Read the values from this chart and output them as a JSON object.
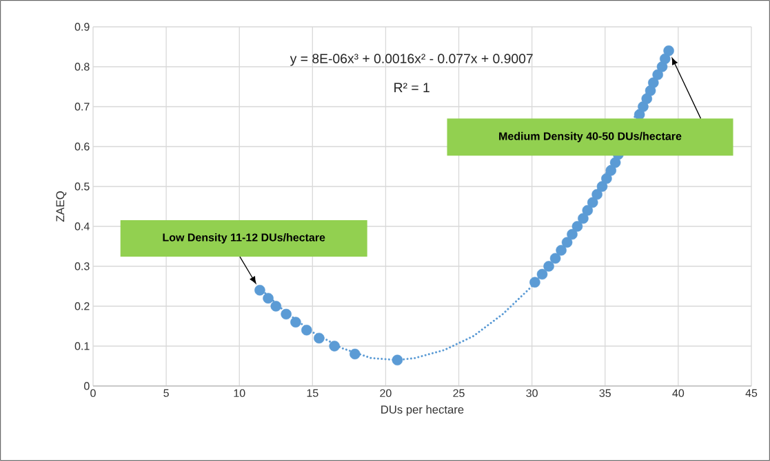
{
  "chart_data": {
    "type": "scatter",
    "xlabel": "DUs per hectare",
    "ylabel": "ZAEQ",
    "xlim": [
      0,
      45
    ],
    "ylim": [
      0,
      0.9
    ],
    "xticks": [
      0,
      5,
      10,
      15,
      20,
      25,
      30,
      35,
      40,
      45
    ],
    "yticks": [
      0,
      0.1,
      0.2,
      0.3,
      0.4,
      0.5,
      0.6,
      0.7,
      0.8,
      0.9
    ],
    "grid": true,
    "series": [
      {
        "color": "#5b9bd5",
        "marker": "circle",
        "x": [
          11.4,
          11.97,
          12.5,
          13.2,
          13.85,
          14.6,
          15.45,
          16.5,
          17.9,
          20.8,
          30.2,
          30.7,
          31.15,
          31.6,
          32.0,
          32.4,
          32.75,
          33.1,
          33.5,
          33.8,
          34.15,
          34.45,
          34.8,
          35.1,
          35.4,
          35.7,
          35.9,
          37.35,
          37.6,
          37.85,
          38.1,
          38.3,
          38.6,
          38.9,
          39.1,
          39.35
        ],
        "values": [
          0.24,
          0.22,
          0.2,
          0.18,
          0.16,
          0.14,
          0.12,
          0.1,
          0.08,
          0.065,
          0.26,
          0.28,
          0.3,
          0.32,
          0.34,
          0.36,
          0.38,
          0.4,
          0.42,
          0.44,
          0.46,
          0.48,
          0.5,
          0.52,
          0.54,
          0.56,
          0.58,
          0.68,
          0.7,
          0.72,
          0.74,
          0.76,
          0.78,
          0.8,
          0.82,
          0.84
        ]
      },
      {
        "type": "line",
        "color": "#5b9bd5",
        "line_style": "dotted",
        "marker": "none",
        "x": [
          11.4,
          13,
          15,
          17,
          19,
          20.8,
          22,
          24,
          26,
          28,
          30,
          32,
          34,
          38,
          39.35
        ],
        "values": [
          0.245,
          0.19,
          0.135,
          0.095,
          0.07,
          0.065,
          0.07,
          0.09,
          0.125,
          0.18,
          0.25,
          0.34,
          0.455,
          0.745,
          0.84
        ]
      }
    ],
    "annotations": [
      "y = 8E-06x³ + 0.0016x² - 0.077x + 0.9007",
      "R² = 1",
      "Low Density 11-12 DUs/hectare",
      "Medium Density 40-50 DUs/hectare"
    ]
  }
}
